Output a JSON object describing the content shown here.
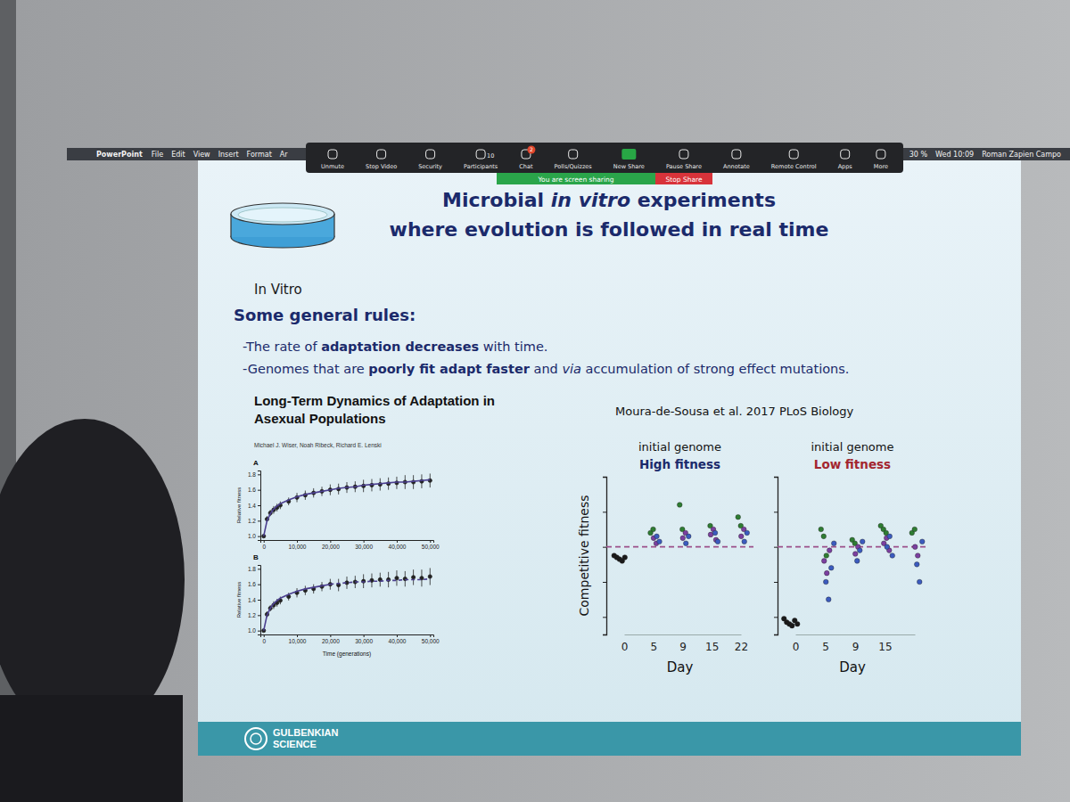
{
  "screen": {
    "menu_bar": {
      "app": "PowerPoint",
      "items": [
        "File",
        "Edit",
        "View",
        "Insert",
        "Format",
        "Ar"
      ],
      "status": [
        "30 %",
        "Wed 10:09",
        "Roman Zapien Campo"
      ]
    },
    "toolbar": {
      "buttons": [
        "Unmute",
        "Stop Video",
        "Security",
        "Participants",
        "Chat",
        "Polls/Quizzes",
        "New Share",
        "Pause Share",
        "Annotate",
        "Remote Control",
        "Apps",
        "More"
      ],
      "participants_count": 10,
      "chat_badge": 2,
      "sharing_notice": "You are screen sharing",
      "stop_share": "Stop Share"
    }
  },
  "slide": {
    "title": [
      [
        {
          "text": "Microbial ",
          "style": "plain"
        },
        {
          "text": "in vitro",
          "style": "italic"
        },
        {
          "text": " experiments",
          "style": "plain"
        }
      ],
      [
        {
          "text": "where evolution is followed in real time",
          "style": "plain"
        }
      ]
    ],
    "subheading": "In Vitro",
    "rules_heading": "Some general rules:",
    "rules": [
      [
        {
          "text": "-The rate of ",
          "style": "plain"
        },
        {
          "text": "adaptation decreases",
          "style": "bold"
        },
        {
          "text": " with time.",
          "style": "plain"
        }
      ],
      [
        {
          "text": "-Genomes that are ",
          "style": "plain"
        },
        {
          "text": "poorly fit adapt faster",
          "style": "bold"
        },
        {
          "text": " and ",
          "style": "plain"
        },
        {
          "text": "via",
          "style": "italic"
        },
        {
          "text": " accumulation of strong effect mutations.",
          "style": "plain"
        }
      ]
    ],
    "footer": [
      "GULBENKIAN",
      "SCIENCE"
    ]
  },
  "chart_data": [
    {
      "type": "scatter",
      "title": "Long-Term Dynamics of Adaptation in Asexual Populations",
      "subtitle": "Michael J. Wiser, Noah Ribeck, Richard E. Lenski",
      "panel": "A",
      "y_label": "Relative fitness",
      "x": [
        0,
        1000,
        2000,
        3000,
        4000,
        5000,
        7500,
        10000,
        12500,
        15000,
        17500,
        20000,
        22500,
        25000,
        27500,
        30000,
        32500,
        35000,
        37500,
        40000,
        42500,
        45000,
        47500,
        50000
      ],
      "xlim": [
        -1000,
        51000
      ],
      "xticks": [
        0,
        {
          "value": 10000,
          "label": "10,000"
        },
        {
          "value": 20000,
          "label": "20,000"
        },
        {
          "value": 30000,
          "label": "30,000"
        },
        {
          "value": 40000,
          "label": "40,000"
        },
        {
          "value": 50000,
          "label": "50,000"
        }
      ],
      "ylim": [
        0.95,
        1.85
      ],
      "yticks": [
        {
          "value": 1.0,
          "label": "1.0"
        },
        1.2,
        1.4,
        1.6,
        1.8
      ],
      "series": [
        {
          "type": "scatter",
          "color": "#222222",
          "marker": "circle",
          "values": [
            1.0,
            1.22,
            1.3,
            1.34,
            1.37,
            1.4,
            1.45,
            1.5,
            1.53,
            1.56,
            1.58,
            1.6,
            1.61,
            1.63,
            1.64,
            1.65,
            1.66,
            1.67,
            1.68,
            1.69,
            1.7,
            1.7,
            1.71,
            1.72
          ],
          "errors": [
            0.01,
            0.04,
            0.04,
            0.05,
            0.05,
            0.05,
            0.05,
            0.06,
            0.06,
            0.06,
            0.06,
            0.07,
            0.07,
            0.07,
            0.07,
            0.08,
            0.08,
            0.08,
            0.08,
            0.08,
            0.09,
            0.09,
            0.09,
            0.09
          ]
        },
        {
          "type": "line",
          "color": "#4b3f8f",
          "line_style": "solid",
          "values": [
            1.0,
            1.2,
            1.29,
            1.35,
            1.39,
            1.42,
            1.47,
            1.51,
            1.54,
            1.56,
            1.58,
            1.6,
            1.62,
            1.63,
            1.64,
            1.66,
            1.67,
            1.68,
            1.69,
            1.7,
            1.7,
            1.71,
            1.72,
            1.73
          ]
        }
      ]
    },
    {
      "type": "scatter",
      "panel": "B",
      "y_label": "Relative fitness",
      "x_label": "Time (generations)",
      "x": [
        0,
        1000,
        2000,
        3000,
        4000,
        5000,
        7500,
        10000,
        12500,
        15000,
        17500,
        20000,
        22500,
        25000,
        27500,
        30000,
        32500,
        35000,
        37500,
        40000,
        42500,
        45000,
        47500,
        50000
      ],
      "xlim": [
        -1000,
        51000
      ],
      "xticks": [
        0,
        {
          "value": 10000,
          "label": "10,000"
        },
        {
          "value": 20000,
          "label": "20,000"
        },
        {
          "value": 30000,
          "label": "30,000"
        },
        {
          "value": 40000,
          "label": "40,000"
        },
        {
          "value": 50000,
          "label": "50,000"
        }
      ],
      "ylim": [
        0.95,
        1.85
      ],
      "yticks": [
        {
          "value": 1.0,
          "label": "1.0"
        },
        1.2,
        1.4,
        1.6,
        1.8
      ],
      "series": [
        {
          "type": "scatter",
          "color": "#222222",
          "marker": "circle",
          "values": [
            1.0,
            1.21,
            1.29,
            1.33,
            1.36,
            1.39,
            1.44,
            1.49,
            1.52,
            1.54,
            1.57,
            1.6,
            1.59,
            1.62,
            1.63,
            1.64,
            1.65,
            1.66,
            1.66,
            1.68,
            1.67,
            1.69,
            1.68,
            1.7
          ],
          "errors": [
            0.01,
            0.04,
            0.04,
            0.05,
            0.05,
            0.05,
            0.05,
            0.06,
            0.06,
            0.06,
            0.06,
            0.07,
            0.08,
            0.08,
            0.08,
            0.09,
            0.09,
            0.09,
            0.1,
            0.1,
            0.1,
            0.1,
            0.11,
            0.11
          ]
        },
        {
          "type": "line",
          "color": "#4b3f8f",
          "line_style": "solid",
          "values": [
            1.0,
            1.2,
            1.29,
            1.35,
            1.39,
            1.42,
            1.47,
            1.51,
            1.54,
            1.56,
            1.58,
            1.6,
            null,
            null,
            null,
            null,
            null,
            null,
            null,
            null,
            null,
            null,
            null,
            null
          ]
        },
        {
          "type": "line",
          "color": "#4b3f8f",
          "line_style": "dashed",
          "values": [
            null,
            null,
            null,
            null,
            null,
            null,
            null,
            null,
            null,
            null,
            null,
            1.6,
            1.61,
            1.62,
            1.63,
            1.63,
            1.64,
            1.64,
            1.65,
            1.65,
            1.66,
            1.66,
            1.66,
            1.67
          ]
        }
      ]
    },
    {
      "type": "strip",
      "source": "Moura-de-Sousa et al. 2017 PLoS Biology",
      "title": "initial genome",
      "subtitle": "High fitness",
      "y_label": "Competitive fitness",
      "x_label": "Day",
      "categories": [
        "0",
        "5",
        "9",
        "15",
        "22"
      ],
      "ylim": [
        -0.5,
        0.4
      ],
      "yticks": [
        -0.4,
        -0.2,
        0,
        0.2,
        0.4
      ],
      "tick_labels": "x",
      "reference_line": {
        "value": 0,
        "color": "#9b4f8a",
        "line_style": "dashed"
      },
      "series": [
        {
          "color": "#1a1a1a",
          "marker": "circle",
          "values": [
            [
              -0.05,
              -0.06,
              -0.07,
              -0.08,
              -0.06
            ],
            [],
            [],
            [],
            []
          ]
        },
        {
          "color": "#2e7d32",
          "marker": "circle",
          "values": [
            [],
            [
              0.08,
              0.1
            ],
            [
              0.24,
              0.1
            ],
            [
              0.12
            ],
            [
              0.17,
              0.12
            ]
          ]
        },
        {
          "color": "#7b3fa0",
          "marker": "circle",
          "values": [
            [],
            [
              0.05,
              0.02
            ],
            [
              0.05,
              0.08
            ],
            [
              0.07,
              0.1,
              0.04
            ],
            [
              0.06,
              0.1
            ]
          ]
        },
        {
          "color": "#3b5bbf",
          "marker": "circle",
          "values": [
            [],
            [
              0.06,
              0.03
            ],
            [
              0.02,
              0.06
            ],
            [
              0.08,
              0.03
            ],
            [
              0.03,
              0.08
            ]
          ]
        }
      ]
    },
    {
      "type": "strip",
      "title": "initial genome",
      "subtitle": "Low fitness",
      "x_label": "Day",
      "categories": [
        "0",
        "5",
        "9",
        "15",
        null
      ],
      "ylim": [
        -0.5,
        0.4
      ],
      "yticks": [
        -0.4,
        -0.2,
        0,
        0.2,
        0.4
      ],
      "tick_labels": "x",
      "reference_line": {
        "value": 0,
        "color": "#9b4f8a",
        "line_style": "dashed"
      },
      "series": [
        {
          "color": "#1a1a1a",
          "marker": "circle",
          "values": [
            [
              -0.41,
              -0.43,
              -0.44,
              -0.45,
              -0.42,
              -0.44
            ],
            [],
            [],
            [],
            []
          ]
        },
        {
          "color": "#2e7d32",
          "marker": "circle",
          "values": [
            [],
            [
              0.1,
              0.06,
              -0.05
            ],
            [
              0.04,
              0.02
            ],
            [
              0.12,
              0.1,
              0.08
            ],
            [
              0.08,
              0.1
            ]
          ]
        },
        {
          "color": "#7b3fa0",
          "marker": "circle",
          "values": [
            [],
            [
              -0.08,
              -0.15,
              -0.02
            ],
            [
              -0.04,
              0.0
            ],
            [
              0.02,
              0.05,
              -0.02
            ],
            [
              0.0,
              -0.05
            ]
          ]
        },
        {
          "color": "#3b5bbf",
          "marker": "circle",
          "values": [
            [],
            [
              -0.2,
              -0.3,
              -0.12,
              0.02
            ],
            [
              -0.08,
              -0.02,
              0.03
            ],
            [
              0.0,
              0.06,
              -0.05
            ],
            [
              -0.1,
              -0.2,
              0.03
            ]
          ]
        }
      ]
    }
  ]
}
